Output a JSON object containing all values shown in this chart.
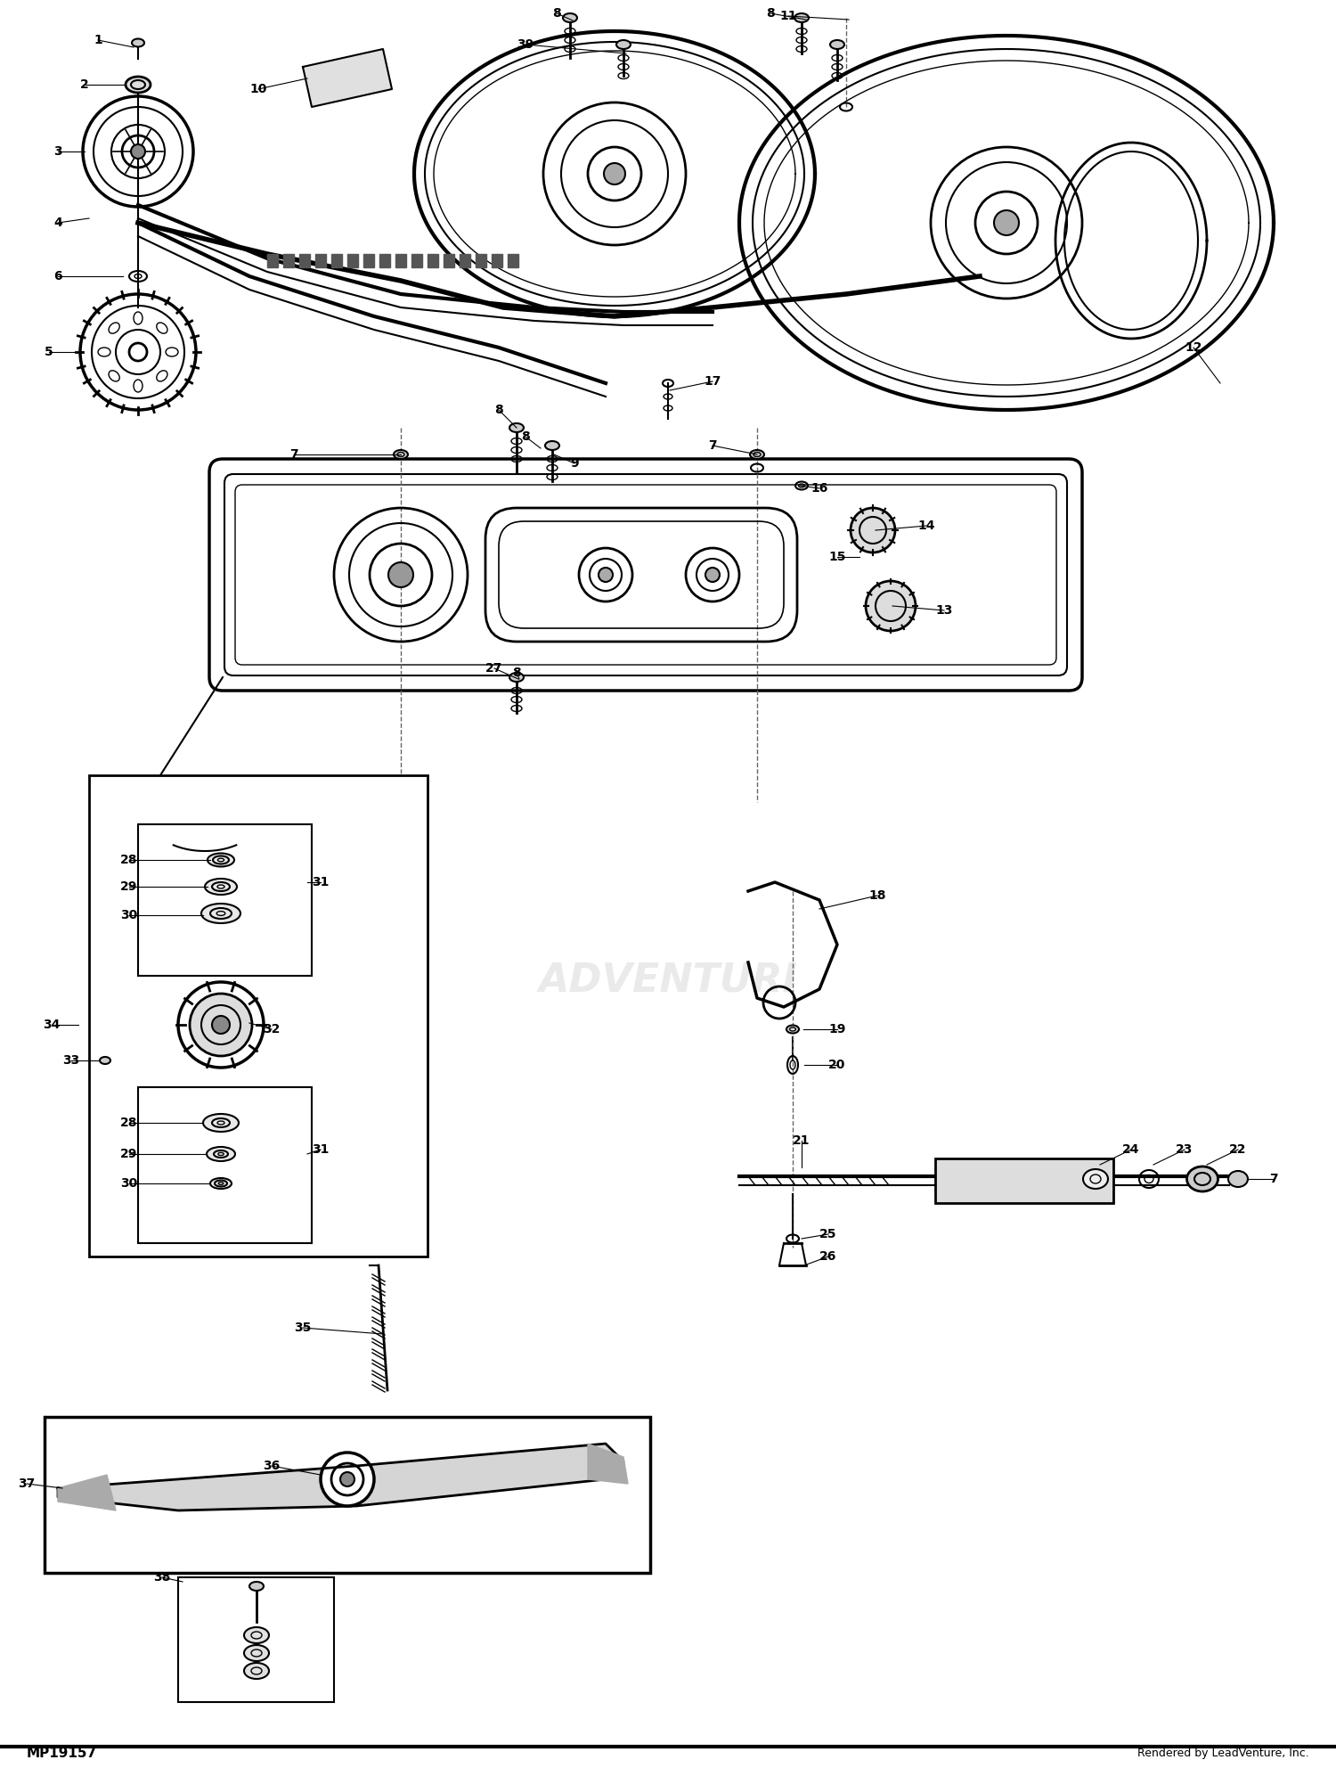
{
  "background_color": "#ffffff",
  "figsize": [
    15.0,
    19.84
  ],
  "dpi": 100,
  "bottom_text": "Rendered by LeadVenture, Inc.",
  "part_number": "MP19157",
  "watermark": "ADVENTURI"
}
